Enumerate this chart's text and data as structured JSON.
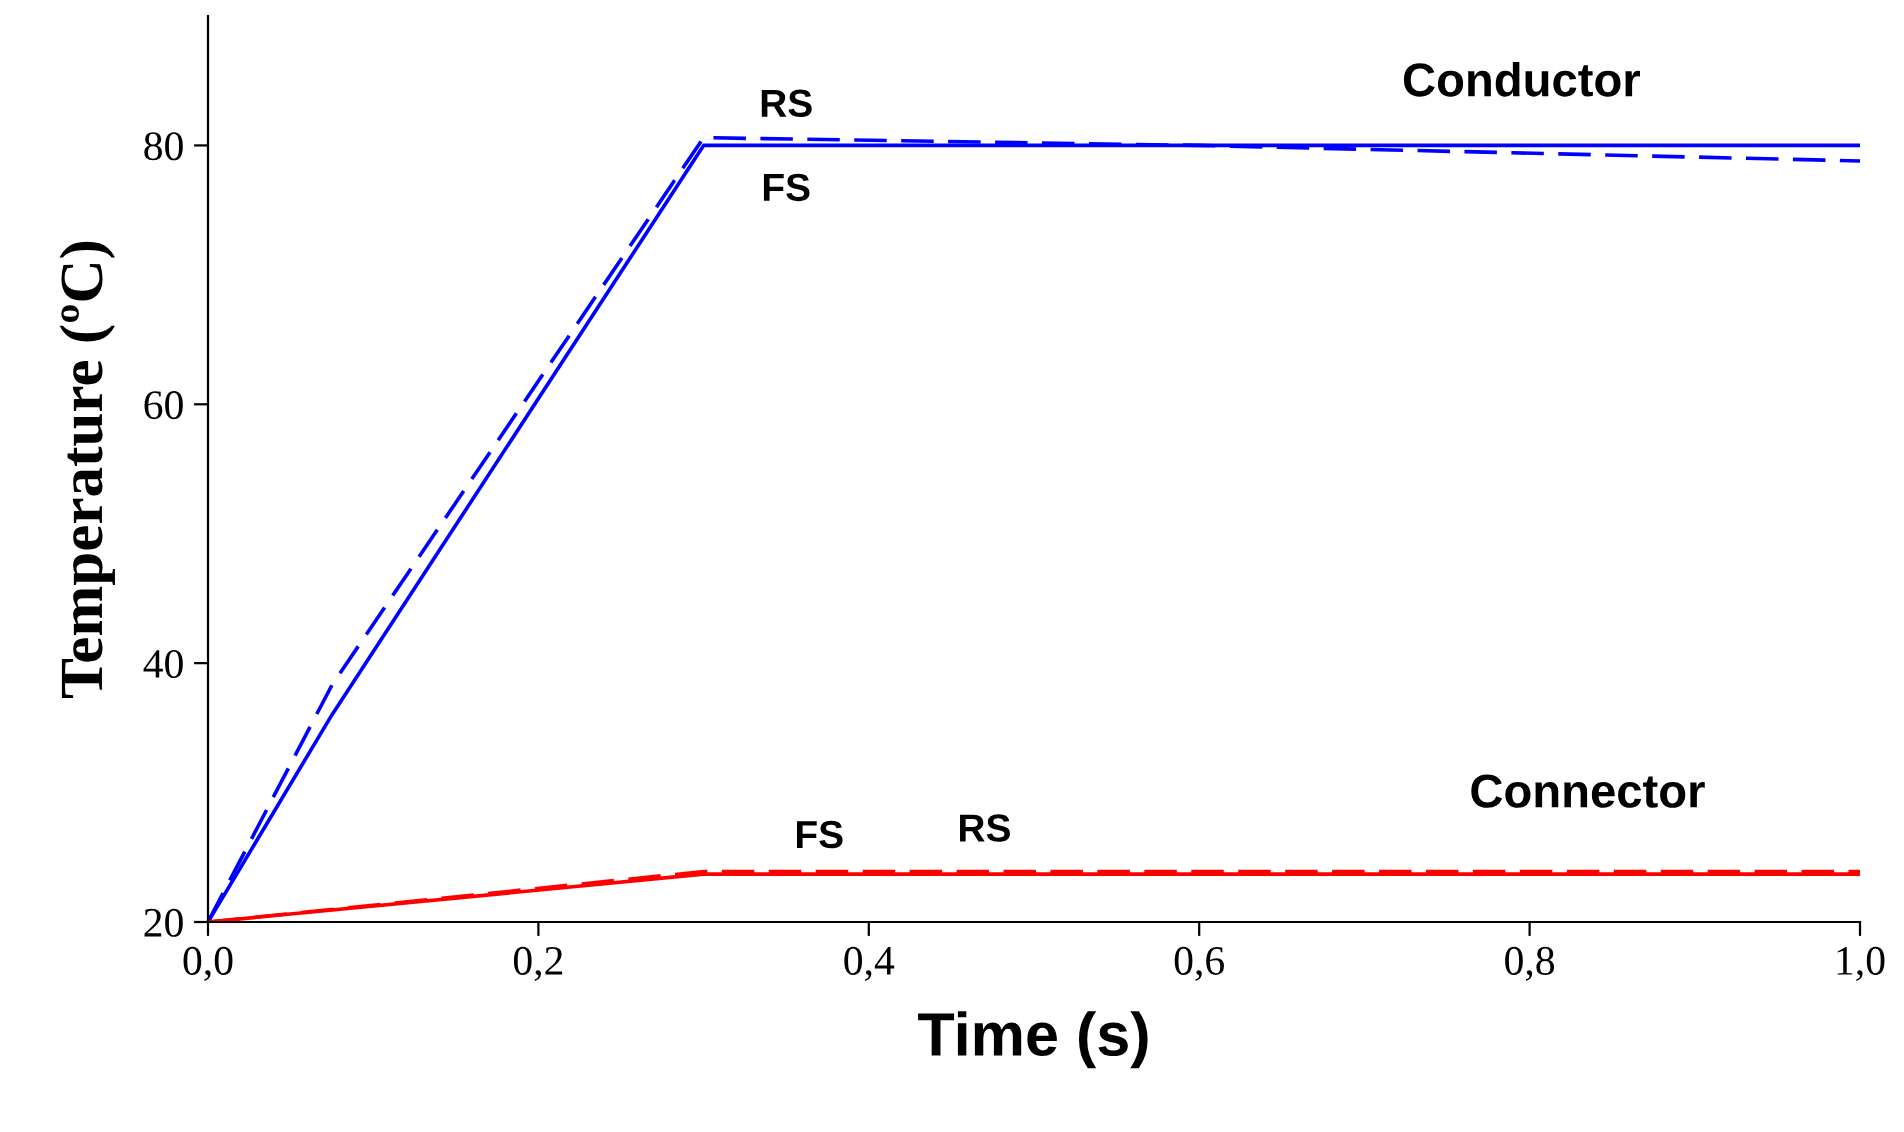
{
  "chart_data": {
    "type": "line",
    "xlabel": "Time (s)",
    "ylabel": "Temperature (ºC)",
    "xlim": [
      0,
      1
    ],
    "ylim": [
      20,
      90
    ],
    "xticks": [
      {
        "value": 0,
        "label": "0,0"
      },
      {
        "value": 0.2,
        "label": "0,2"
      },
      {
        "value": 0.4,
        "label": "0,4"
      },
      {
        "value": 0.6,
        "label": "0,6"
      },
      {
        "value": 0.8,
        "label": "0,8"
      },
      {
        "value": 1,
        "label": "1,0"
      }
    ],
    "yticks": [
      20,
      40,
      60,
      80
    ],
    "grid": false,
    "legend": false,
    "marker": "none",
    "series": [
      {
        "name": "FS",
        "color": "#0000ff",
        "line_style": "solid",
        "x": [
          0,
          0.075,
          0.3,
          1
        ],
        "values": [
          20,
          36,
          80,
          80
        ]
      },
      {
        "name": "RS",
        "color": "#0000ff",
        "line_style": "dashed",
        "x": [
          0,
          0.075,
          0.3,
          0.6,
          1
        ],
        "values": [
          20,
          38.3,
          80.6,
          80,
          78.8
        ]
      },
      {
        "name": "FS",
        "color": "#ff0000",
        "line_style": "solid",
        "x": [
          0,
          0.3,
          1
        ],
        "values": [
          20,
          23.7,
          23.7
        ]
      },
      {
        "name": "RS",
        "color": "#ff0000",
        "line_style": "dashed",
        "x": [
          0,
          0.3,
          1
        ],
        "values": [
          20,
          23.9,
          23.9
        ]
      }
    ],
    "annotations": [
      "Conductor",
      "Connector"
    ]
  }
}
